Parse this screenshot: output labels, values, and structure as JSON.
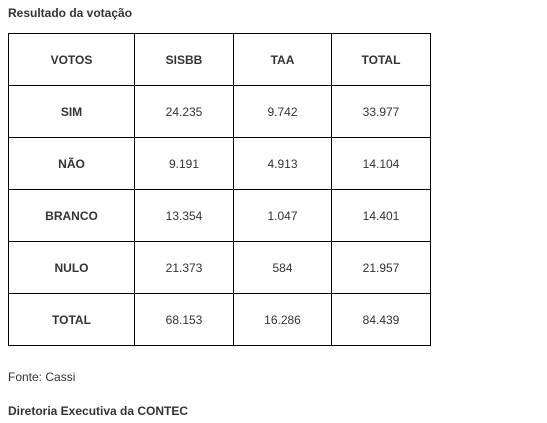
{
  "title": "Resultado da votação",
  "table": {
    "headers": [
      "VOTOS",
      "SISBB",
      "TAA",
      "TOTAL"
    ],
    "rows": [
      {
        "label": "SIM",
        "sisbb": "24.235",
        "taa": "9.742",
        "total": "33.977"
      },
      {
        "label": "NÃO",
        "sisbb": "9.191",
        "taa": "4.913",
        "total": "14.104"
      },
      {
        "label": "BRANCO",
        "sisbb": "13.354",
        "taa": "1.047",
        "total": "14.401"
      },
      {
        "label": "NULO",
        "sisbb": "21.373",
        "taa": "584",
        "total": "21.957"
      },
      {
        "label": "TOTAL",
        "sisbb": "68.153",
        "taa": "16.286",
        "total": "84.439"
      }
    ]
  },
  "source": "Fonte: Cassi",
  "signature": "Diretoria Executiva da CONTEC"
}
